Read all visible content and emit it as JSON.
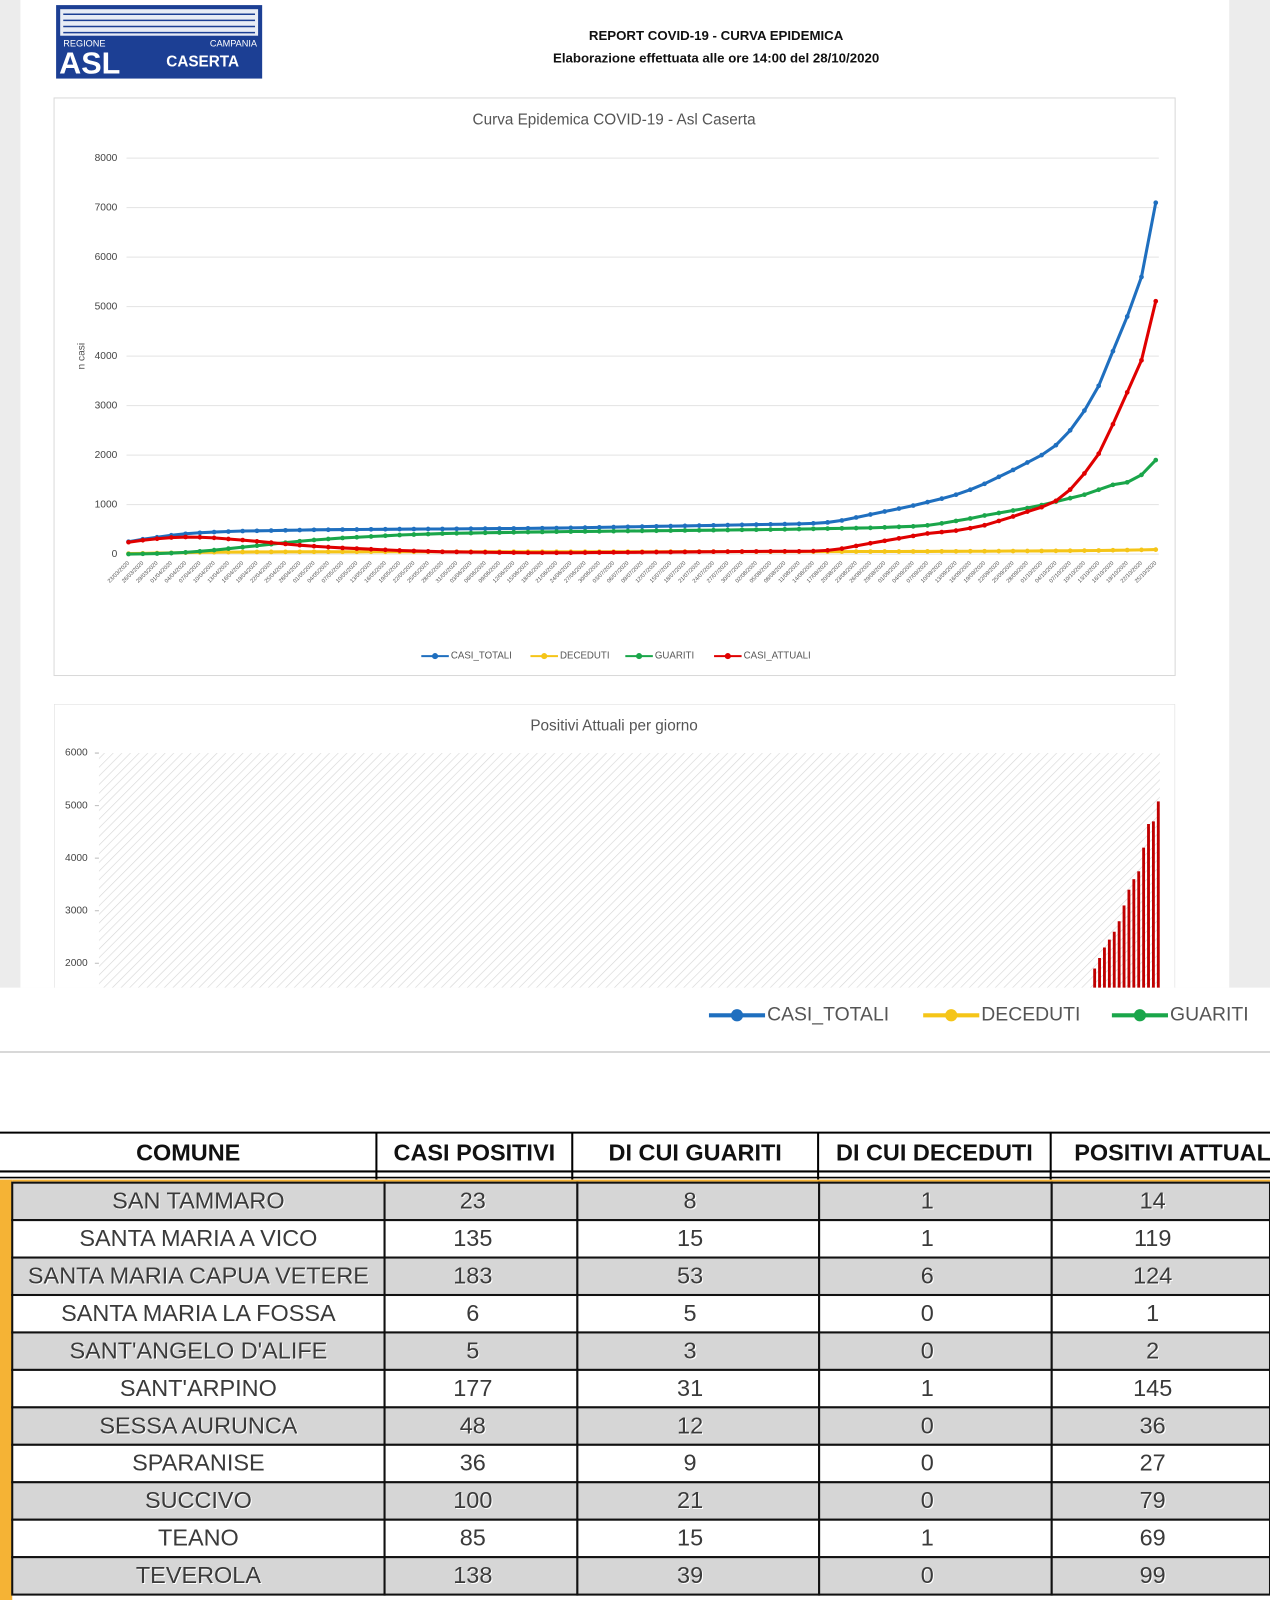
{
  "header": {
    "logo": {
      "region_left": "REGIONE",
      "region_right": "CAMPANIA",
      "asl": "ASL",
      "city": "CASERTA"
    },
    "title": "REPORT COVID-19 - CURVA EPIDEMICA",
    "subtitle": "Elaborazione effettuata alle ore 14:00 del 28/10/2020"
  },
  "chart_data": [
    {
      "type": "line",
      "title": "Curva Epidemica COVID-19 - Asl Caserta",
      "y_label": "n casi",
      "ylim": [
        0,
        8000
      ],
      "yticks": [
        0,
        1000,
        2000,
        3000,
        4000,
        5000,
        6000,
        7000,
        8000
      ],
      "grid": true,
      "legend": "bottom",
      "categories": [
        "23/03/2020",
        "26/03/2020",
        "29/03/2020",
        "01/04/2020",
        "04/04/2020",
        "07/04/2020",
        "10/04/2020",
        "13/04/2020",
        "16/04/2020",
        "19/04/2020",
        "22/04/2020",
        "25/04/2020",
        "28/04/2020",
        "01/05/2020",
        "04/05/2020",
        "07/05/2020",
        "10/05/2020",
        "13/05/2020",
        "16/05/2020",
        "19/05/2020",
        "22/05/2020",
        "25/05/2020",
        "28/05/2020",
        "31/05/2020",
        "03/06/2020",
        "06/06/2020",
        "09/06/2020",
        "12/06/2020",
        "15/06/2020",
        "18/06/2020",
        "21/06/2020",
        "24/06/2020",
        "27/06/2020",
        "30/06/2020",
        "03/07/2020",
        "06/07/2020",
        "09/07/2020",
        "12/07/2020",
        "15/07/2020",
        "18/07/2020",
        "21/07/2020",
        "24/07/2020",
        "27/07/2020",
        "30/07/2020",
        "02/08/2020",
        "05/08/2020",
        "08/08/2020",
        "11/08/2020",
        "14/08/2020",
        "17/08/2020",
        "20/08/2020",
        "23/08/2020",
        "26/08/2020",
        "29/08/2020",
        "01/09/2020",
        "04/09/2020",
        "07/09/2020",
        "10/09/2020",
        "13/09/2020",
        "16/09/2020",
        "19/09/2020",
        "22/09/2020",
        "25/09/2020",
        "28/09/2020",
        "01/10/2020",
        "04/10/2020",
        "07/10/2020",
        "10/10/2020",
        "13/10/2020",
        "16/10/2020",
        "19/10/2020",
        "22/10/2020",
        "25/10/2020"
      ],
      "series": [
        {
          "name": "CASI_TOTALI",
          "color": "#1f6fbf",
          "values": [
            250,
            300,
            340,
            380,
            410,
            430,
            445,
            455,
            465,
            470,
            475,
            480,
            485,
            490,
            492,
            495,
            497,
            500,
            502,
            504,
            505,
            507,
            508,
            510,
            512,
            514,
            516,
            518,
            520,
            523,
            526,
            530,
            535,
            540,
            545,
            550,
            555,
            560,
            565,
            570,
            575,
            580,
            585,
            590,
            595,
            600,
            605,
            610,
            620,
            640,
            680,
            740,
            800,
            860,
            920,
            980,
            1050,
            1120,
            1200,
            1300,
            1420,
            1560,
            1700,
            1850,
            2000,
            2200,
            2500,
            2900,
            3400,
            4100,
            4800,
            5600,
            7100
          ]
        },
        {
          "name": "DECEDUTI",
          "color": "#f5c518",
          "values": [
            10,
            15,
            20,
            25,
            30,
            35,
            38,
            40,
            42,
            43,
            44,
            45,
            45,
            46,
            46,
            46,
            46,
            47,
            47,
            47,
            47,
            47,
            47,
            47,
            47,
            47,
            48,
            48,
            48,
            48,
            48,
            48,
            48,
            48,
            48,
            48,
            48,
            48,
            49,
            49,
            49,
            49,
            49,
            49,
            49,
            49,
            50,
            50,
            50,
            50,
            50,
            51,
            51,
            52,
            52,
            53,
            54,
            55,
            56,
            57,
            58,
            60,
            61,
            62,
            63,
            65,
            67,
            70,
            73,
            77,
            81,
            85,
            90
          ]
        },
        {
          "name": "GUARITI",
          "color": "#1aa64a",
          "values": [
            0,
            5,
            10,
            20,
            35,
            55,
            80,
            110,
            140,
            170,
            200,
            230,
            260,
            285,
            305,
            325,
            340,
            355,
            370,
            385,
            395,
            405,
            415,
            420,
            425,
            430,
            435,
            440,
            445,
            448,
            452,
            455,
            458,
            460,
            463,
            466,
            469,
            472,
            475,
            478,
            480,
            483,
            486,
            490,
            493,
            496,
            500,
            505,
            510,
            515,
            520,
            525,
            530,
            540,
            550,
            560,
            580,
            620,
            670,
            720,
            780,
            830,
            880,
            930,
            990,
            1060,
            1130,
            1200,
            1300,
            1400,
            1450,
            1600,
            1900
          ]
        },
        {
          "name": "CASI_ATTUALI",
          "color": "#e00000",
          "values": [
            240,
            280,
            310,
            335,
            345,
            340,
            327,
            305,
            283,
            257,
            231,
            205,
            180,
            159,
            141,
            124,
            111,
            98,
            85,
            72,
            63,
            55,
            46,
            43,
            40,
            37,
            33,
            30,
            27,
            27,
            26,
            27,
            29,
            32,
            34,
            36,
            38,
            40,
            41,
            43,
            46,
            48,
            50,
            51,
            53,
            55,
            55,
            55,
            60,
            75,
            110,
            164,
            219,
            268,
            318,
            367,
            416,
            445,
            474,
            523,
            582,
            670,
            759,
            858,
            947,
            1075,
            1303,
            1630,
            2027,
            2623,
            3269,
            3915,
            5110
          ]
        }
      ]
    },
    {
      "type": "bar",
      "title": "Positivi Attuali per giorno",
      "ylim": [
        0,
        6000
      ],
      "yticks": [
        2000,
        3000,
        4000,
        5000,
        6000
      ],
      "color": "#c00000",
      "categories": [
        null,
        null,
        null,
        null,
        null,
        null,
        null,
        null,
        null,
        null,
        null,
        null,
        null,
        null
      ],
      "values": [
        1900,
        2100,
        2300,
        2450,
        2600,
        2800,
        3100,
        3400,
        3600,
        3750,
        4200,
        4650,
        4700,
        5080
      ]
    }
  ],
  "overlay_legend": {
    "items": [
      {
        "name": "CASI_TOTALI",
        "color": "#1f6fbf"
      },
      {
        "name": "DECEDUTI",
        "color": "#f5c518"
      },
      {
        "name": "GUARITI",
        "color": "#1aa64a"
      }
    ]
  },
  "table": {
    "header": [
      "COMUNE",
      "CASI POSITIVI",
      "DI CUI GUARITI",
      "DI CUI DECEDUTI",
      "POSITIVI ATTUAL"
    ],
    "rows": [
      [
        "SAN TAMMARO",
        23,
        8,
        1,
        14
      ],
      [
        "SANTA MARIA A VICO",
        135,
        15,
        1,
        119
      ],
      [
        "SANTA MARIA CAPUA VETERE",
        183,
        53,
        6,
        124
      ],
      [
        "SANTA MARIA LA FOSSA",
        6,
        5,
        0,
        1
      ],
      [
        "SANT'ANGELO D'ALIFE",
        5,
        3,
        0,
        2
      ],
      [
        "SANT'ARPINO",
        177,
        31,
        1,
        145
      ],
      [
        "SESSA AURUNCA",
        48,
        12,
        0,
        36
      ],
      [
        "SPARANISE",
        36,
        9,
        0,
        27
      ],
      [
        "SUCCIVO",
        100,
        21,
        0,
        79
      ],
      [
        "TEANO",
        85,
        15,
        1,
        69
      ],
      [
        "TEVEROLA",
        138,
        39,
        0,
        99
      ]
    ]
  }
}
